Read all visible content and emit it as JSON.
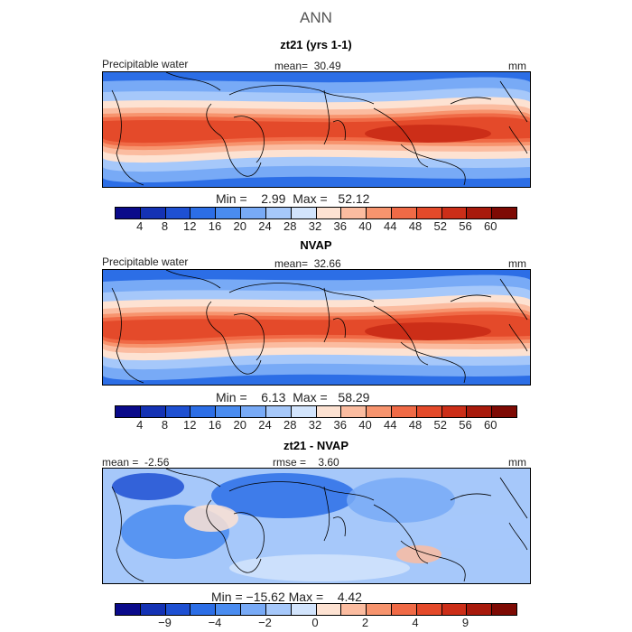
{
  "figure_title": "ANN",
  "colors": {
    "abs_scale": [
      "#0a0a8a",
      "#1432b4",
      "#1e50d2",
      "#2c6ee6",
      "#4a8cf0",
      "#78aaf6",
      "#a6c8fa",
      "#d2e4fc",
      "#fde2d2",
      "#fbbca0",
      "#f7946e",
      "#f06a46",
      "#e44a2a",
      "#cc2e18",
      "#a81a0c",
      "#7e0a04"
    ],
    "diff_scale": [
      "#0a0a8a",
      "#1432b4",
      "#1e50d2",
      "#2c6ee6",
      "#4a8cf0",
      "#78aaf6",
      "#a6c8fa",
      "#d2e4fc",
      "#fde2d2",
      "#fbbca0",
      "#f7946e",
      "#f06a46",
      "#e44a2a",
      "#cc2e18",
      "#a81a0c",
      "#7e0a04"
    ],
    "coast": "#000000"
  },
  "chart_data": [
    {
      "type": "heatmap",
      "title": "zt21 (yrs 1-1)",
      "variable": "Precipitable water",
      "stat_label": "mean=",
      "stat_value": "30.49",
      "units": "mm",
      "min_label": "Min =",
      "min_value": "2.99",
      "max_label": "Max =",
      "max_value": "52.12",
      "colorbar_ticks": [
        "4",
        "8",
        "12",
        "16",
        "20",
        "24",
        "28",
        "32",
        "36",
        "40",
        "44",
        "48",
        "52",
        "56",
        "60"
      ],
      "mean": 30.49,
      "min": 2.99,
      "max": 52.12
    },
    {
      "type": "heatmap",
      "title": "NVAP",
      "variable": "Precipitable water",
      "stat_label": "mean=",
      "stat_value": "32.66",
      "units": "mm",
      "min_label": "Min =",
      "min_value": "6.13",
      "max_label": "Max =",
      "max_value": "58.29",
      "colorbar_ticks": [
        "4",
        "8",
        "12",
        "16",
        "20",
        "24",
        "28",
        "32",
        "36",
        "40",
        "44",
        "48",
        "52",
        "56",
        "60"
      ],
      "mean": 32.66,
      "min": 6.13,
      "max": 58.29
    },
    {
      "type": "heatmap",
      "title": "zt21 - NVAP",
      "mean_label": "mean =",
      "mean_value": "-2.56",
      "rmse_label": "rmse =",
      "rmse_value": "3.60",
      "units": "mm",
      "min_label": "Min =",
      "min_value": "−15.62",
      "max_label": "Max =",
      "max_value": "4.42",
      "colorbar_ticks": [
        "−9",
        "−4",
        "−2",
        "0",
        "2",
        "4",
        "9"
      ],
      "mean": -2.56,
      "rmse": 3.6,
      "min": -15.62,
      "max": 4.42
    }
  ]
}
